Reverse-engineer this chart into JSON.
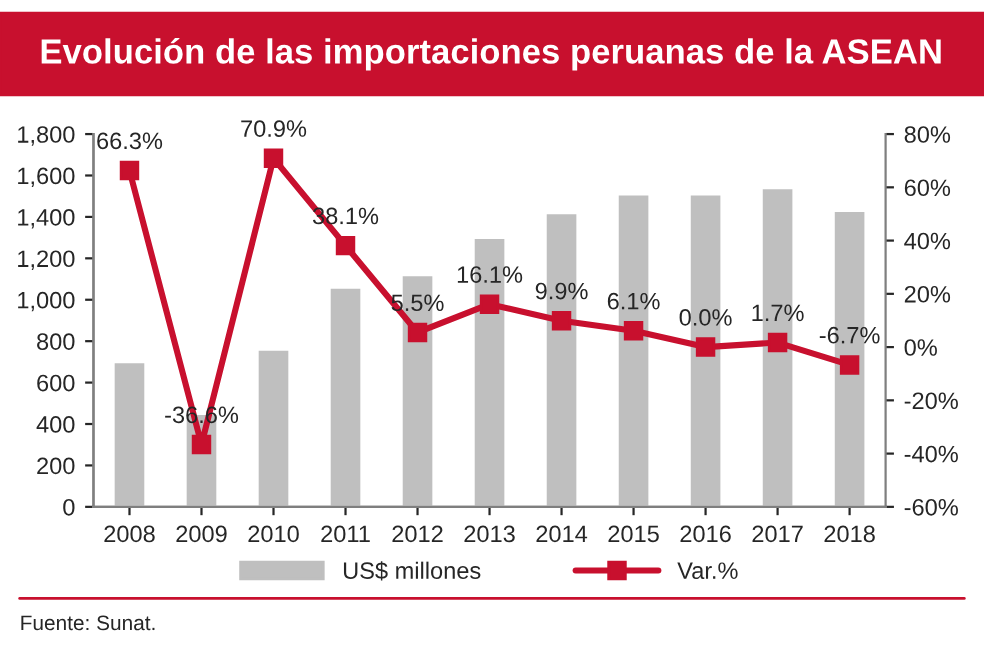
{
  "chart_data": {
    "type": "bar",
    "title": "Evolución de las importaciones peruanas de la ASEAN",
    "categories": [
      "2008",
      "2009",
      "2010",
      "2011",
      "2012",
      "2013",
      "2014",
      "2015",
      "2016",
      "2017",
      "2018"
    ],
    "series": [
      {
        "name": "US$ millones",
        "color": "#bfbfbf",
        "values": [
          700,
          450,
          760,
          1060,
          1120,
          1300,
          1420,
          1510,
          1510,
          1540,
          1430
        ]
      },
      {
        "name": "Var.%",
        "type": "line",
        "axis": "y2",
        "color": "#c8102e",
        "values": [
          66.3,
          -36.6,
          70.9,
          38.1,
          5.5,
          16.1,
          9.9,
          6.1,
          0.0,
          1.7,
          -6.7
        ],
        "value_labels": [
          "66.3%",
          "-36.6%",
          "70.9%",
          "38.1%",
          "5.5%",
          "16.1%",
          "9.9%",
          "6.1%",
          "0.0%",
          "1.7%",
          "-6.7%"
        ]
      }
    ],
    "ylim": [
      0,
      1800
    ],
    "yticks": [
      0,
      200,
      400,
      600,
      800,
      {
        "value": 1000,
        "label": "1,000"
      },
      {
        "value": 1200,
        "label": "1,200"
      },
      {
        "value": 1400,
        "label": "1,400"
      },
      {
        "value": 1600,
        "label": "1,600"
      },
      {
        "value": 1800,
        "label": "1,800"
      }
    ],
    "y2lim": [
      -60,
      80
    ],
    "y2ticks": [
      {
        "value": -60,
        "label": "-60%"
      },
      {
        "value": -40,
        "label": "-40%"
      },
      {
        "value": -20,
        "label": "-20%"
      },
      {
        "value": 0,
        "label": "0%"
      },
      {
        "value": 20,
        "label": "20%"
      },
      {
        "value": 40,
        "label": "40%"
      },
      {
        "value": 60,
        "label": "60%"
      },
      {
        "value": 80,
        "label": "80%"
      }
    ],
    "marker": "square",
    "line_style": "solid",
    "legend": "bottom",
    "grid": false,
    "annotations": [
      "Fuente: Sunat."
    ]
  }
}
